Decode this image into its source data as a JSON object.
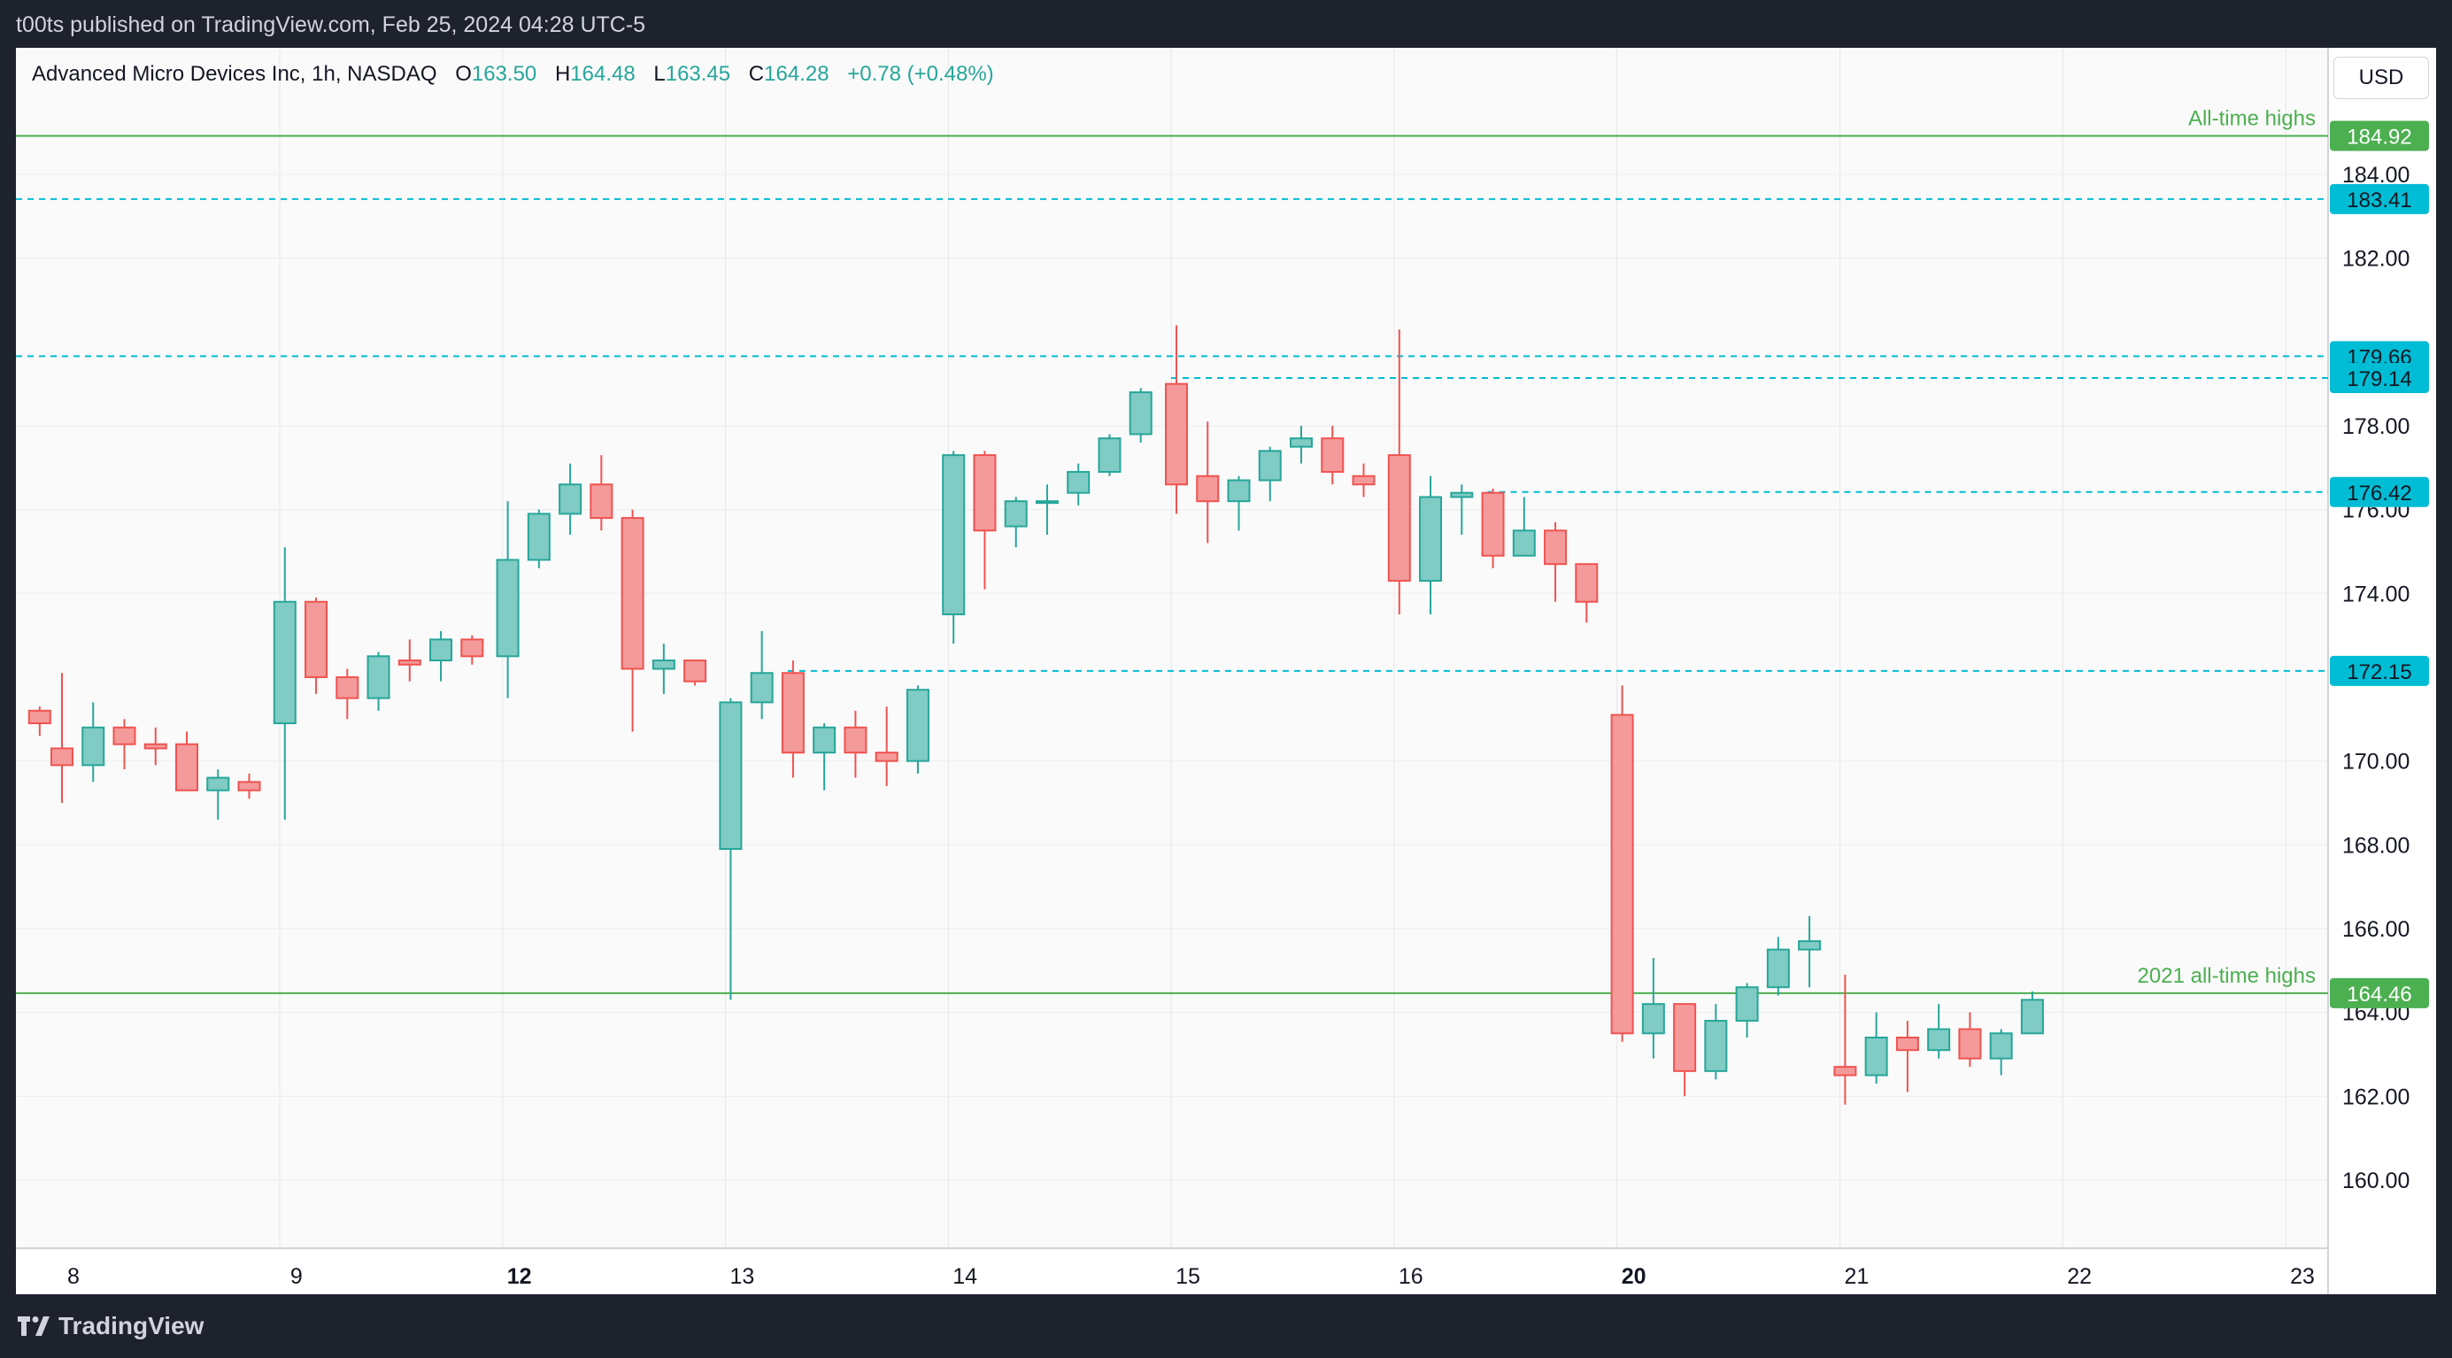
{
  "publisher_line": "t00ts published on TradingView.com, Feb 25, 2024 04:28 UTC-5",
  "brand": "TradingView",
  "currency_button": "USD",
  "header": {
    "symbol": "Advanced Micro Devices Inc, 1h, NASDAQ",
    "o_label": "O",
    "o_value": "163.50",
    "h_label": "H",
    "h_value": "164.48",
    "l_label": "L",
    "l_value": "163.45",
    "c_label": "C",
    "c_value": "164.28",
    "change": "+0.78 (+0.48%)"
  },
  "colors": {
    "up": "#26a69a",
    "down": "#ef5350",
    "up_fill": "#80cbc4",
    "down_fill": "#f49a9a",
    "level_line": "#00bcd4",
    "resistance_line": "#4caf50"
  },
  "chart_data": {
    "type": "candlestick",
    "title": "",
    "xlabel": "",
    "ylabel": "",
    "ylim": [
      158.5,
      185.5
    ],
    "grid": true,
    "y_ticks": [
      "160.00",
      "162.00",
      "164.00",
      "166.00",
      "168.00",
      "170.00",
      "174.00",
      "176.00",
      "178.00",
      "182.00",
      "184.00"
    ],
    "x_tick_labels": [
      {
        "label": "8",
        "day": 0,
        "bold": false
      },
      {
        "label": "9",
        "day": 1,
        "bold": false
      },
      {
        "label": "12",
        "day": 2,
        "bold": true
      },
      {
        "label": "13",
        "day": 3,
        "bold": false
      },
      {
        "label": "14",
        "day": 4,
        "bold": false
      },
      {
        "label": "15",
        "day": 5,
        "bold": false
      },
      {
        "label": "16",
        "day": 6,
        "bold": false
      },
      {
        "label": "20",
        "day": 7,
        "bold": true
      },
      {
        "label": "21",
        "day": 8,
        "bold": false
      },
      {
        "label": "22",
        "day": 9,
        "bold": false
      },
      {
        "label": "23",
        "day": 10,
        "bold": false
      }
    ],
    "candles_per_day": 7,
    "candles": [
      {
        "day": -0.1,
        "o": 171.2,
        "h": 171.3,
        "l": 170.6,
        "c": 170.9
      },
      {
        "day": 0.0,
        "o": 170.3,
        "h": 172.1,
        "l": 169.0,
        "c": 169.9
      },
      {
        "day": 0.14,
        "o": 169.9,
        "h": 171.4,
        "l": 169.5,
        "c": 170.8
      },
      {
        "day": 0.28,
        "o": 170.8,
        "h": 171.0,
        "l": 169.8,
        "c": 170.4
      },
      {
        "day": 0.42,
        "o": 170.4,
        "h": 170.8,
        "l": 169.9,
        "c": 170.3
      },
      {
        "day": 0.56,
        "o": 170.4,
        "h": 170.7,
        "l": 169.3,
        "c": 169.3
      },
      {
        "day": 0.7,
        "o": 169.3,
        "h": 169.8,
        "l": 168.6,
        "c": 169.6
      },
      {
        "day": 0.84,
        "o": 169.5,
        "h": 169.7,
        "l": 169.1,
        "c": 169.3
      },
      {
        "day": 1.0,
        "o": 170.9,
        "h": 175.1,
        "l": 168.6,
        "c": 173.8
      },
      {
        "day": 1.14,
        "o": 173.8,
        "h": 173.9,
        "l": 171.6,
        "c": 172.0
      },
      {
        "day": 1.28,
        "o": 172.0,
        "h": 172.2,
        "l": 171.0,
        "c": 171.5
      },
      {
        "day": 1.42,
        "o": 171.5,
        "h": 172.6,
        "l": 171.2,
        "c": 172.5
      },
      {
        "day": 1.56,
        "o": 172.4,
        "h": 172.9,
        "l": 171.9,
        "c": 172.3
      },
      {
        "day": 1.7,
        "o": 172.4,
        "h": 173.1,
        "l": 171.9,
        "c": 172.9
      },
      {
        "day": 1.84,
        "o": 172.9,
        "h": 173.0,
        "l": 172.3,
        "c": 172.5
      },
      {
        "day": 2.0,
        "o": 172.5,
        "h": 176.2,
        "l": 171.5,
        "c": 174.8
      },
      {
        "day": 2.14,
        "o": 174.8,
        "h": 176.0,
        "l": 174.6,
        "c": 175.9
      },
      {
        "day": 2.28,
        "o": 175.9,
        "h": 177.1,
        "l": 175.4,
        "c": 176.6
      },
      {
        "day": 2.42,
        "o": 176.6,
        "h": 177.3,
        "l": 175.5,
        "c": 175.8
      },
      {
        "day": 2.56,
        "o": 175.8,
        "h": 176.0,
        "l": 170.7,
        "c": 172.2
      },
      {
        "day": 2.7,
        "o": 172.2,
        "h": 172.8,
        "l": 171.6,
        "c": 172.4
      },
      {
        "day": 2.84,
        "o": 172.4,
        "h": 172.4,
        "l": 171.8,
        "c": 171.9
      },
      {
        "day": 3.0,
        "o": 167.9,
        "h": 171.5,
        "l": 164.3,
        "c": 171.4
      },
      {
        "day": 3.14,
        "o": 171.4,
        "h": 173.1,
        "l": 171.0,
        "c": 172.1
      },
      {
        "day": 3.28,
        "o": 172.1,
        "h": 172.4,
        "l": 169.6,
        "c": 170.2
      },
      {
        "day": 3.42,
        "o": 170.2,
        "h": 170.9,
        "l": 169.3,
        "c": 170.8
      },
      {
        "day": 3.56,
        "o": 170.8,
        "h": 171.2,
        "l": 169.6,
        "c": 170.2
      },
      {
        "day": 3.7,
        "o": 170.2,
        "h": 171.3,
        "l": 169.4,
        "c": 170.0
      },
      {
        "day": 3.84,
        "o": 170.0,
        "h": 171.8,
        "l": 169.7,
        "c": 171.7
      },
      {
        "day": 4.0,
        "o": 173.5,
        "h": 177.4,
        "l": 172.8,
        "c": 177.3
      },
      {
        "day": 4.14,
        "o": 177.3,
        "h": 177.4,
        "l": 174.1,
        "c": 175.5
      },
      {
        "day": 4.28,
        "o": 175.6,
        "h": 176.3,
        "l": 175.1,
        "c": 176.2
      },
      {
        "day": 4.42,
        "o": 176.2,
        "h": 176.6,
        "l": 175.4,
        "c": 176.2
      },
      {
        "day": 4.56,
        "o": 176.4,
        "h": 177.1,
        "l": 176.1,
        "c": 176.9
      },
      {
        "day": 4.7,
        "o": 176.9,
        "h": 177.8,
        "l": 176.8,
        "c": 177.7
      },
      {
        "day": 4.84,
        "o": 177.8,
        "h": 178.9,
        "l": 177.6,
        "c": 178.8
      },
      {
        "day": 5.0,
        "o": 179.0,
        "h": 180.4,
        "l": 175.9,
        "c": 176.6
      },
      {
        "day": 5.14,
        "o": 176.8,
        "h": 178.1,
        "l": 175.2,
        "c": 176.2
      },
      {
        "day": 5.28,
        "o": 176.2,
        "h": 176.8,
        "l": 175.5,
        "c": 176.7
      },
      {
        "day": 5.42,
        "o": 176.7,
        "h": 177.5,
        "l": 176.2,
        "c": 177.4
      },
      {
        "day": 5.56,
        "o": 177.5,
        "h": 178.0,
        "l": 177.1,
        "c": 177.7
      },
      {
        "day": 5.7,
        "o": 177.7,
        "h": 178.0,
        "l": 176.6,
        "c": 176.9
      },
      {
        "day": 5.84,
        "o": 176.8,
        "h": 177.1,
        "l": 176.3,
        "c": 176.6
      },
      {
        "day": 6.0,
        "o": 177.3,
        "h": 180.3,
        "l": 173.5,
        "c": 174.3
      },
      {
        "day": 6.14,
        "o": 174.3,
        "h": 176.8,
        "l": 173.5,
        "c": 176.3
      },
      {
        "day": 6.28,
        "o": 176.3,
        "h": 176.6,
        "l": 175.4,
        "c": 176.4
      },
      {
        "day": 6.42,
        "o": 176.4,
        "h": 176.5,
        "l": 174.6,
        "c": 174.9
      },
      {
        "day": 6.56,
        "o": 174.9,
        "h": 176.3,
        "l": 174.9,
        "c": 175.5
      },
      {
        "day": 6.7,
        "o": 175.5,
        "h": 175.7,
        "l": 173.8,
        "c": 174.7
      },
      {
        "day": 6.84,
        "o": 174.7,
        "h": 174.7,
        "l": 173.3,
        "c": 173.8
      },
      {
        "day": 7.0,
        "o": 171.1,
        "h": 171.8,
        "l": 163.3,
        "c": 163.5
      },
      {
        "day": 7.14,
        "o": 163.5,
        "h": 165.3,
        "l": 162.9,
        "c": 164.2
      },
      {
        "day": 7.28,
        "o": 164.2,
        "h": 164.2,
        "l": 162.0,
        "c": 162.6
      },
      {
        "day": 7.42,
        "o": 162.6,
        "h": 164.2,
        "l": 162.4,
        "c": 163.8
      },
      {
        "day": 7.56,
        "o": 163.8,
        "h": 164.7,
        "l": 163.4,
        "c": 164.6
      },
      {
        "day": 7.7,
        "o": 164.6,
        "h": 165.8,
        "l": 164.4,
        "c": 165.5
      },
      {
        "day": 7.84,
        "o": 165.5,
        "h": 166.3,
        "l": 164.6,
        "c": 165.7
      },
      {
        "day": 8.0,
        "o": 162.7,
        "h": 164.9,
        "l": 161.8,
        "c": 162.5
      },
      {
        "day": 8.14,
        "o": 162.5,
        "h": 164.0,
        "l": 162.3,
        "c": 163.4
      },
      {
        "day": 8.28,
        "o": 163.4,
        "h": 163.8,
        "l": 162.1,
        "c": 163.1
      },
      {
        "day": 8.42,
        "o": 163.1,
        "h": 164.2,
        "l": 162.9,
        "c": 163.6
      },
      {
        "day": 8.56,
        "o": 163.6,
        "h": 164.0,
        "l": 162.7,
        "c": 162.9
      },
      {
        "day": 8.7,
        "o": 162.9,
        "h": 163.6,
        "l": 162.5,
        "c": 163.5
      },
      {
        "day": 8.84,
        "o": 163.5,
        "h": 164.5,
        "l": 163.5,
        "c": 164.3
      }
    ],
    "horizontal_levels": [
      {
        "price": 184.92,
        "label": "184.92",
        "style": "solid",
        "color": "#4caf50",
        "text": "All-time highs",
        "from_day": -0.2
      },
      {
        "price": 183.41,
        "label": "183.41",
        "style": "dashed",
        "color": "#00bcd4",
        "text": "",
        "from_day": -0.2
      },
      {
        "price": 179.66,
        "label": "179.66",
        "style": "dashed",
        "color": "#00bcd4",
        "text": "",
        "from_day": -0.2
      },
      {
        "price": 179.14,
        "label": "179.14",
        "style": "dashed",
        "color": "#00bcd4",
        "text": "",
        "from_day": 5.0
      },
      {
        "price": 176.42,
        "label": "176.42",
        "style": "dashed",
        "color": "#00bcd4",
        "text": "",
        "from_day": 6.42
      },
      {
        "price": 172.15,
        "label": "172.15",
        "style": "dashed",
        "color": "#00bcd4",
        "text": "",
        "from_day": 3.28
      },
      {
        "price": 164.46,
        "label": "164.46",
        "style": "solid",
        "color": "#4caf50",
        "text": "2021 all-time highs",
        "from_day": -0.2
      }
    ]
  }
}
